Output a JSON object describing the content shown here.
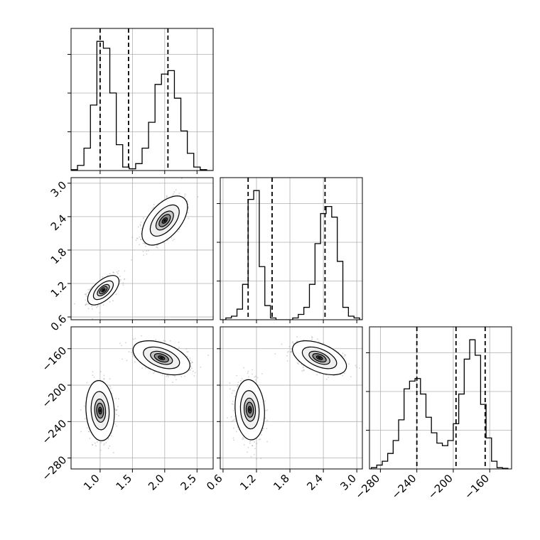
{
  "chart_data": {
    "type": "corner",
    "grid": true,
    "parameters": [
      {
        "range": [
          0.55,
          2.75
        ],
        "ticks": [
          1.0,
          1.5,
          2.0,
          2.5
        ],
        "tick_labels": [
          "1.0",
          "1.5",
          "2.0",
          "2.5"
        ]
      },
      {
        "range": [
          0.55,
          3.1
        ],
        "ticks": [
          0.6,
          1.2,
          1.8,
          2.4,
          3.0
        ],
        "tick_labels": [
          "0.6",
          "1.2",
          "1.8",
          "2.4",
          "3.0"
        ]
      },
      {
        "range": [
          -292,
          -136
        ],
        "ticks": [
          -280,
          -240,
          -200,
          -160
        ],
        "tick_labels": [
          "−280",
          "−240",
          "−200",
          "−160"
        ]
      }
    ],
    "panels": [
      {
        "name": "hist-param-1",
        "type": "histogram",
        "param": 0,
        "bin_edges": [
          0.55,
          0.65,
          0.75,
          0.85,
          0.95,
          1.05,
          1.15,
          1.25,
          1.35,
          1.45,
          1.55,
          1.65,
          1.75,
          1.85,
          1.95,
          2.05,
          2.15,
          2.25,
          2.35,
          2.45,
          2.55,
          2.65,
          2.75
        ],
        "counts": [
          0.5,
          3,
          13,
          38,
          75,
          71,
          45,
          15,
          2,
          1,
          4,
          13,
          28,
          50,
          56,
          58,
          42,
          23,
          10,
          2,
          0.5,
          0
        ],
        "quantiles": [
          1.0,
          1.44,
          2.05
        ]
      },
      {
        "name": "hist-param-2",
        "type": "histogram",
        "param": 1,
        "bin_edges": [
          0.55,
          0.65,
          0.75,
          0.85,
          0.95,
          1.05,
          1.15,
          1.25,
          1.35,
          1.45,
          1.55,
          1.65,
          1.75,
          1.85,
          1.95,
          2.05,
          2.15,
          2.25,
          2.35,
          2.45,
          2.55,
          2.65,
          2.75,
          2.85,
          2.95,
          3.05,
          3.1
        ],
        "counts": [
          0,
          1,
          2,
          6,
          20,
          68,
          73,
          30,
          8,
          1,
          0,
          0,
          0,
          1,
          3,
          7,
          20,
          43,
          60,
          64,
          58,
          33,
          7,
          2,
          1,
          0
        ],
        "quantiles": [
          1.05,
          1.48,
          2.43
        ]
      },
      {
        "name": "hist-param-3",
        "type": "histogram",
        "param": 2,
        "bin_edges": [
          -290,
          -284,
          -278,
          -272,
          -266,
          -260,
          -254,
          -248,
          -242,
          -236,
          -230,
          -224,
          -218,
          -212,
          -206,
          -200,
          -194,
          -188,
          -182,
          -176,
          -170,
          -164,
          -158,
          -152,
          -146,
          -140
        ],
        "counts": [
          1,
          3,
          6,
          12,
          22,
          38,
          62,
          68,
          70,
          58,
          40,
          28,
          20,
          18,
          22,
          35,
          58,
          85,
          100,
          88,
          50,
          24,
          6,
          1,
          0.5
        ],
        "quantiles": [
          -240,
          -197,
          -165
        ]
      },
      {
        "name": "scatter-param2-vs-param1",
        "type": "2d-density",
        "xparam": 0,
        "yparam": 1,
        "clusters": [
          {
            "center": [
              1.05,
              1.08
            ],
            "sigma": [
              0.11,
              0.12
            ],
            "rho": 0.6
          },
          {
            "center": [
              2.0,
              2.33
            ],
            "sigma": [
              0.16,
              0.2
            ],
            "rho": 0.55
          }
        ]
      },
      {
        "name": "scatter-param3-vs-param1",
        "type": "2d-density",
        "xparam": 0,
        "yparam": 2,
        "clusters": [
          {
            "center": [
              1.0,
              -228
            ],
            "sigma": [
              0.1,
              15
            ],
            "rho": -0.1
          },
          {
            "center": [
              1.95,
              -170
            ],
            "sigma": [
              0.2,
              8.5
            ],
            "rho": -0.45
          }
        ]
      },
      {
        "name": "scatter-param3-vs-param2",
        "type": "2d-density",
        "xparam": 1,
        "yparam": 2,
        "clusters": [
          {
            "center": [
              1.08,
              -227
            ],
            "sigma": [
              0.12,
              15
            ],
            "rho": -0.1
          },
          {
            "center": [
              2.33,
              -170
            ],
            "sigma": [
              0.22,
              8.5
            ],
            "rho": -0.5
          }
        ]
      }
    ]
  },
  "colors": {
    "lines": "#000000",
    "scatter_points": "#7f7f7f",
    "grid": "#b0b0b0",
    "density_levels": [
      "#f0f0f0",
      "#c8c8c8",
      "#8a8a8a",
      "#4a4a4a",
      "#000000"
    ]
  }
}
